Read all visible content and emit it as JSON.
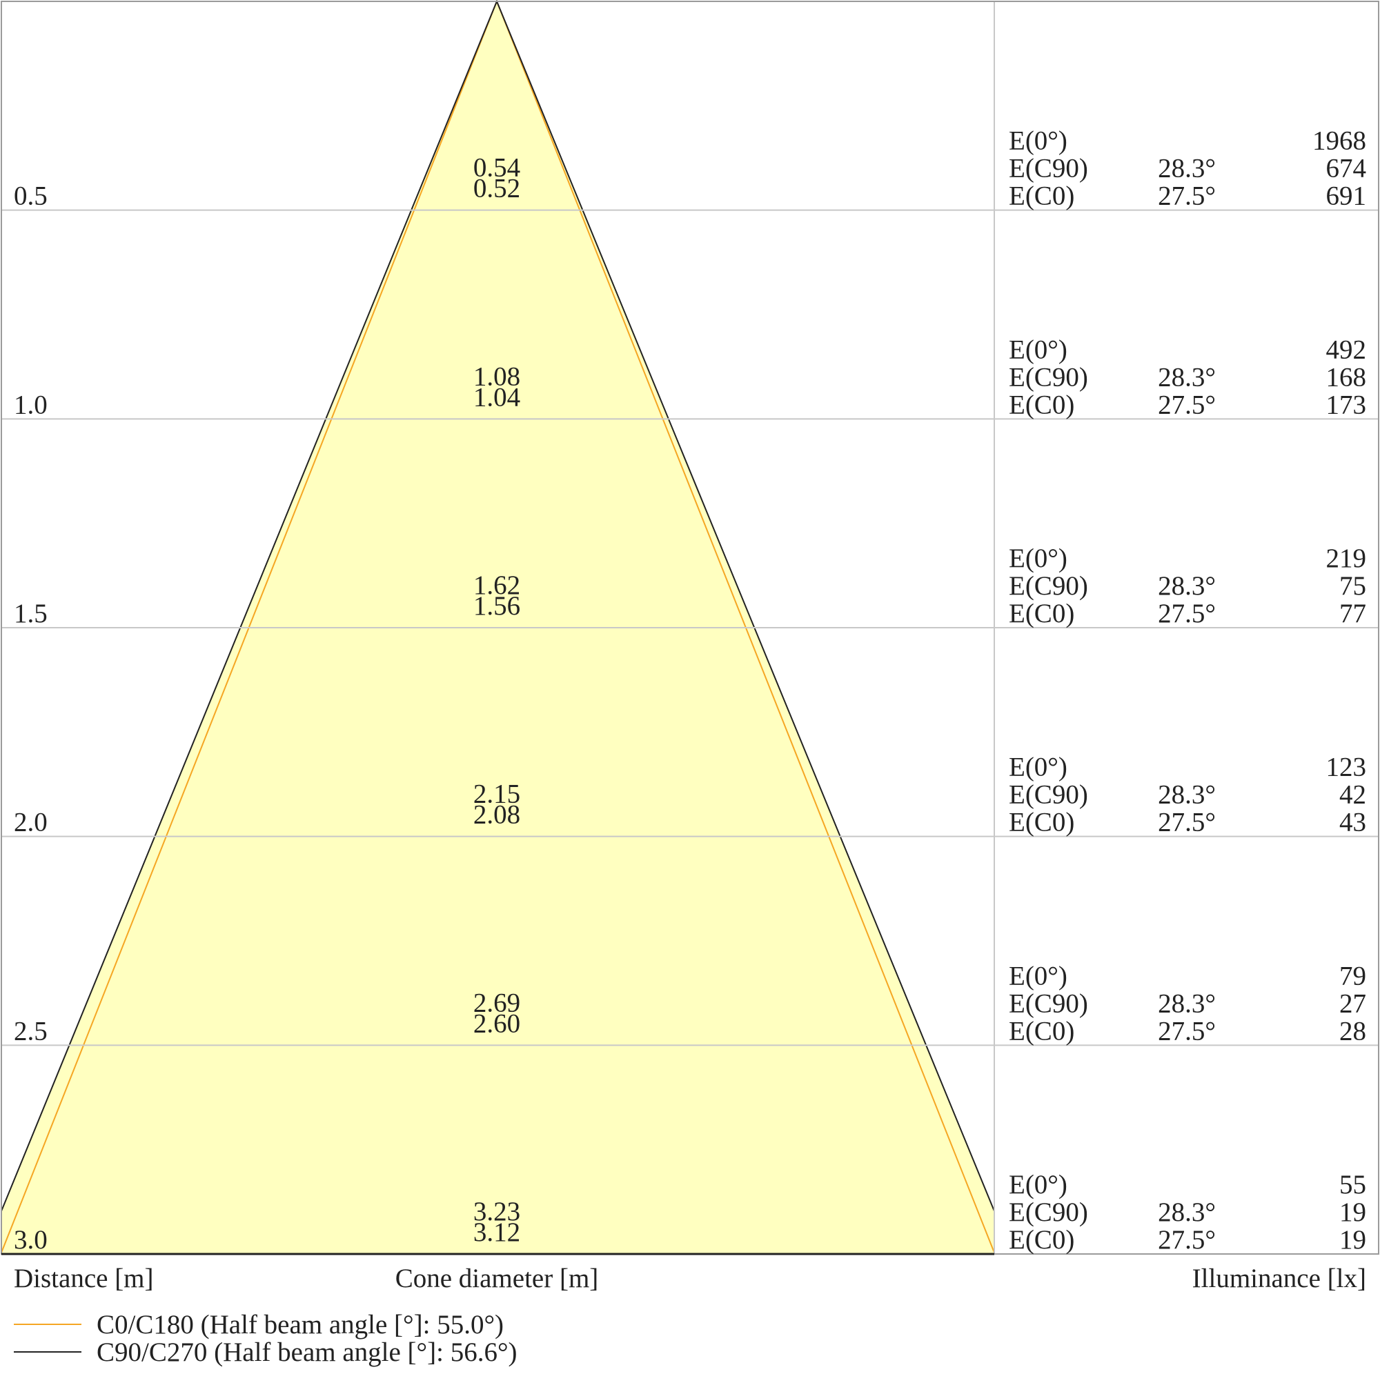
{
  "chart_data": {
    "type": "cone-diagram",
    "distance_label": "Distance [m]",
    "cone_label": "Cone diameter [m]",
    "illuminance_label": "Illuminance [lx]",
    "rows": [
      {
        "distance": "0.5",
        "d_c90": "0.54",
        "d_c0": "0.52",
        "e0_label": "E(0°)",
        "e0": "1968",
        "ec90_label": "E(C90)",
        "ec90_angle": "28.3°",
        "ec90": "674",
        "ec0_label": "E(C0)",
        "ec0_angle": "27.5°",
        "ec0": "691"
      },
      {
        "distance": "1.0",
        "d_c90": "1.08",
        "d_c0": "1.04",
        "e0_label": "E(0°)",
        "e0": "492",
        "ec90_label": "E(C90)",
        "ec90_angle": "28.3°",
        "ec90": "168",
        "ec0_label": "E(C0)",
        "ec0_angle": "27.5°",
        "ec0": "173"
      },
      {
        "distance": "1.5",
        "d_c90": "1.62",
        "d_c0": "1.56",
        "e0_label": "E(0°)",
        "e0": "219",
        "ec90_label": "E(C90)",
        "ec90_angle": "28.3°",
        "ec90": "75",
        "ec0_label": "E(C0)",
        "ec0_angle": "27.5°",
        "ec0": "77"
      },
      {
        "distance": "2.0",
        "d_c90": "2.15",
        "d_c0": "2.08",
        "e0_label": "E(0°)",
        "e0": "123",
        "ec90_label": "E(C90)",
        "ec90_angle": "28.3°",
        "ec90": "42",
        "ec0_label": "E(C0)",
        "ec0_angle": "27.5°",
        "ec0": "43"
      },
      {
        "distance": "2.5",
        "d_c90": "2.69",
        "d_c0": "2.60",
        "e0_label": "E(0°)",
        "e0": "79",
        "ec90_label": "E(C90)",
        "ec90_angle": "28.3°",
        "ec90": "27",
        "ec0_label": "E(C0)",
        "ec0_angle": "27.5°",
        "ec0": "28"
      },
      {
        "distance": "3.0",
        "d_c90": "3.23",
        "d_c0": "3.12",
        "e0_label": "E(0°)",
        "e0": "55",
        "ec90_label": "E(C90)",
        "ec90_angle": "28.3°",
        "ec90": "19",
        "ec0_label": "E(C0)",
        "ec0_angle": "27.5°",
        "ec0": "19"
      }
    ],
    "series": [
      {
        "name": "C0/C180 (Half beam angle [°]: 55.0°)",
        "half_beam_angle": 55.0,
        "color": "#f5a623"
      },
      {
        "name": "C90/C270 (Half beam angle [°]: 56.6°)",
        "half_beam_angle": 56.6,
        "color": "#222222"
      }
    ],
    "cone_fill": "#ffffc0",
    "grid_color": "#c8c8c8"
  }
}
